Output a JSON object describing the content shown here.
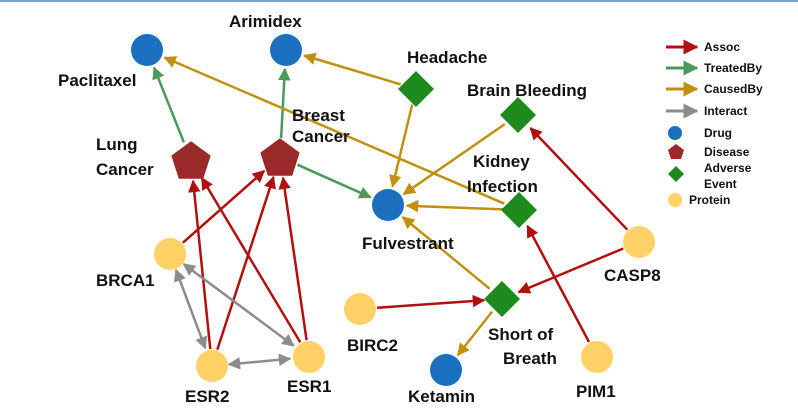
{
  "colors": {
    "assoc": "#b01010",
    "treatedby": "#4a9a5a",
    "causedby": "#c09010",
    "interact": "#8c8c8c",
    "drug": "#1a6fbf",
    "disease": "#9a2a2a",
    "event": "#1e8a1e",
    "protein": "#ffd166",
    "topline": "#6aa6d6"
  },
  "legend": {
    "assoc": "Assoc",
    "treatedby": "TreatedBy",
    "causedby": "CausedBy",
    "interact": "Interact",
    "drug": "Drug",
    "disease": "Disease",
    "event_line1": "Adverse",
    "event_line2": "Event",
    "protein": "Protein"
  },
  "nodes": {
    "paclitaxel": {
      "label": "Paclitaxel",
      "type": "drug"
    },
    "arimidex": {
      "label": "Arimidex",
      "type": "drug"
    },
    "fulvestrant": {
      "label": "Fulvestrant",
      "type": "drug"
    },
    "ketamin": {
      "label": "Ketamin",
      "type": "drug"
    },
    "lung_cancer": {
      "label_line1": "Lung",
      "label_line2": "Cancer",
      "type": "disease"
    },
    "breast_cancer": {
      "label_line1": "Breast",
      "label_line2": "Cancer",
      "type": "disease"
    },
    "headache": {
      "label": "Headache",
      "type": "event"
    },
    "brain_bleeding": {
      "label": "Brain Bleeding",
      "type": "event"
    },
    "kidney_infection": {
      "label_line1": "Kidney",
      "label_line2": "Infection",
      "type": "event"
    },
    "short_of_breath": {
      "label_line1": "Short of",
      "label_line2": "Breath",
      "type": "event"
    },
    "brca1": {
      "label": "BRCA1",
      "type": "protein"
    },
    "esr2": {
      "label": "ESR2",
      "type": "protein"
    },
    "esr1": {
      "label": "ESR1",
      "type": "protein"
    },
    "birc2": {
      "label": "BIRC2",
      "type": "protein"
    },
    "casp8": {
      "label": "CASP8",
      "type": "protein"
    },
    "pim1": {
      "label": "PIM1",
      "type": "protein"
    }
  },
  "edges": [
    {
      "source": "lung_cancer",
      "target": "paclitaxel",
      "relation": "treatedby"
    },
    {
      "source": "breast_cancer",
      "target": "arimidex",
      "relation": "treatedby"
    },
    {
      "source": "breast_cancer",
      "target": "fulvestrant",
      "relation": "treatedby"
    },
    {
      "source": "headache",
      "target": "arimidex",
      "relation": "causedby"
    },
    {
      "source": "headache",
      "target": "fulvestrant",
      "relation": "causedby"
    },
    {
      "source": "kidney_infection",
      "target": "paclitaxel",
      "relation": "causedby"
    },
    {
      "source": "brain_bleeding",
      "target": "fulvestrant",
      "relation": "causedby"
    },
    {
      "source": "kidney_infection",
      "target": "fulvestrant",
      "relation": "causedby"
    },
    {
      "source": "short_of_breath",
      "target": "fulvestrant",
      "relation": "causedby"
    },
    {
      "source": "short_of_breath",
      "target": "ketamin",
      "relation": "causedby"
    },
    {
      "source": "esr2",
      "target": "lung_cancer",
      "relation": "assoc"
    },
    {
      "source": "esr2",
      "target": "breast_cancer",
      "relation": "assoc"
    },
    {
      "source": "esr1",
      "target": "lung_cancer",
      "relation": "assoc"
    },
    {
      "source": "esr1",
      "target": "breast_cancer",
      "relation": "assoc"
    },
    {
      "source": "brca1",
      "target": "breast_cancer",
      "relation": "assoc"
    },
    {
      "source": "birc2",
      "target": "short_of_breath",
      "relation": "assoc"
    },
    {
      "source": "casp8",
      "target": "brain_bleeding",
      "relation": "assoc"
    },
    {
      "source": "casp8",
      "target": "short_of_breath",
      "relation": "assoc"
    },
    {
      "source": "pim1",
      "target": "kidney_infection",
      "relation": "assoc"
    },
    {
      "source": "brca1",
      "target": "esr2",
      "relation": "interact",
      "bidirectional": true
    },
    {
      "source": "brca1",
      "target": "esr1",
      "relation": "interact",
      "bidirectional": true
    },
    {
      "source": "esr2",
      "target": "esr1",
      "relation": "interact",
      "bidirectional": true
    }
  ]
}
